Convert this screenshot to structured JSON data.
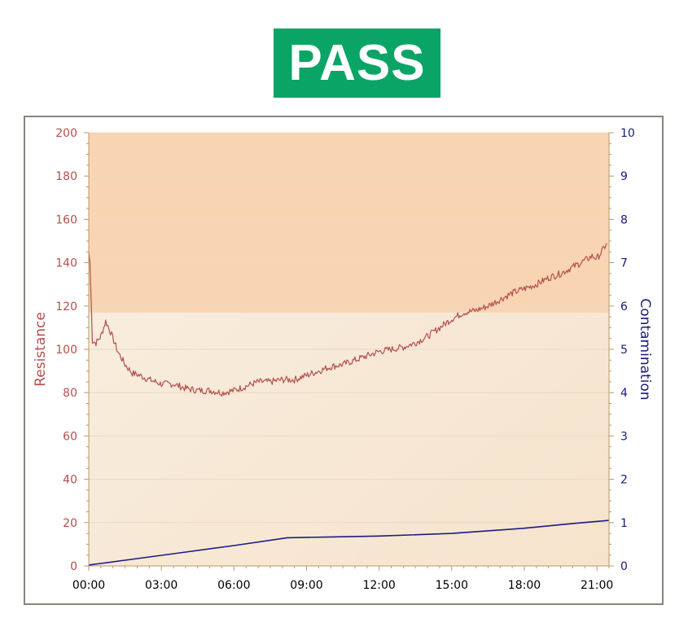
{
  "status": {
    "label": "PASS",
    "color": "#0aa566"
  },
  "chart_data": {
    "type": "line",
    "xlabel": "",
    "x_ticks": [
      "00:00",
      "03:00",
      "06:00",
      "09:00",
      "12:00",
      "15:00",
      "18:00",
      "21:00"
    ],
    "xlim_hours": [
      0,
      21.5
    ],
    "y_left": {
      "label": "Resistance",
      "ylim": [
        0,
        200
      ],
      "ticks": [
        0,
        20,
        40,
        60,
        80,
        100,
        120,
        140,
        160,
        180,
        200
      ],
      "color": "#b4504d"
    },
    "y_right": {
      "label": "Contamination",
      "ylim": [
        0,
        10
      ],
      "ticks": [
        0,
        1,
        2,
        3,
        4,
        5,
        6,
        7,
        8,
        9,
        10
      ],
      "color": "#1a1a7a"
    },
    "threshold_band": {
      "axis": "left",
      "from": 117,
      "to": 200,
      "color": "#f9d4b3"
    },
    "grid": true,
    "series": [
      {
        "axis": "left",
        "color": "#b4504d",
        "x": [
          0,
          0.05,
          0.15,
          0.3,
          0.5,
          0.7,
          0.9,
          1.2,
          1.5,
          1.8,
          2.1,
          2.5,
          3.0,
          3.5,
          4.0,
          4.5,
          5.0,
          5.5,
          6.0,
          6.5,
          7.0,
          7.5,
          8.0,
          8.5,
          9.0,
          9.5,
          10.0,
          10.5,
          11.0,
          11.5,
          12.0,
          12.5,
          13.0,
          13.5,
          14.0,
          14.5,
          15.0,
          15.5,
          16.0,
          16.5,
          17.0,
          17.5,
          18.0,
          18.5,
          19.0,
          19.5,
          20.0,
          20.5,
          20.8,
          21.0,
          21.2,
          21.4
        ],
        "values": [
          145,
          140,
          104,
          103,
          106,
          113,
          108,
          99,
          93,
          89,
          88,
          86,
          84,
          84,
          82,
          81,
          81,
          80,
          81,
          83,
          85,
          85,
          86,
          86,
          88,
          90,
          92,
          93,
          95,
          97,
          99,
          100,
          101,
          103,
          106,
          110,
          114,
          117,
          118,
          120,
          123,
          126,
          128,
          130,
          133,
          135,
          138,
          141,
          143,
          142,
          145,
          149
        ]
      },
      {
        "axis": "right",
        "color": "#1c1c80",
        "x": [
          0,
          2,
          4,
          6,
          8.2,
          10,
          12,
          15,
          18,
          20,
          21.5
        ],
        "values": [
          0.02,
          0.17,
          0.32,
          0.47,
          0.65,
          0.67,
          0.69,
          0.75,
          0.87,
          0.98,
          1.05
        ]
      }
    ]
  }
}
